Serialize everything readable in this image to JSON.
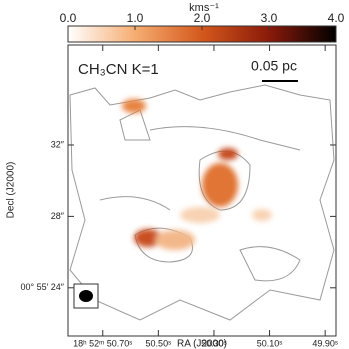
{
  "chart_data": {
    "type": "map",
    "title": "CH₃CN K=1",
    "colorbar_label": "kms⁻¹",
    "clim": [
      0,
      4
    ],
    "cticks": [
      {
        "value": 0,
        "label": "0.0"
      },
      {
        "value": 1,
        "label": "1.0"
      },
      {
        "value": 2,
        "label": "2.0"
      },
      {
        "value": 3,
        "label": "3.0"
      },
      {
        "value": 4,
        "label": "4.0"
      }
    ],
    "colormap": [
      "#ffffff",
      "#f6ad72",
      "#d4581c",
      "#8a1a0a",
      "#000000"
    ],
    "scale_bar": "0.05 pc",
    "x_label": "RA (J2000)",
    "y_label": "Decl (J2000)",
    "xlim": [
      50.825,
      49.861
    ],
    "xticks": [
      {
        "value": 50.7,
        "label": "18ʰ 52ᵐ 50.70ˢ"
      },
      {
        "value": 50.5,
        "label": "50.50ˢ"
      },
      {
        "value": 50.3,
        "label": "50.30ˢ"
      },
      {
        "value": 50.1,
        "label": "50.10ˢ"
      },
      {
        "value": 49.9,
        "label": "49.90ˢ"
      }
    ],
    "ylim": [
      21.3,
      37.6
    ],
    "yticks": [
      {
        "value": 24,
        "label": "00° 55′ 24″"
      },
      {
        "value": 28,
        "label": "28″"
      },
      {
        "value": 32,
        "label": "32″"
      }
    ]
  }
}
